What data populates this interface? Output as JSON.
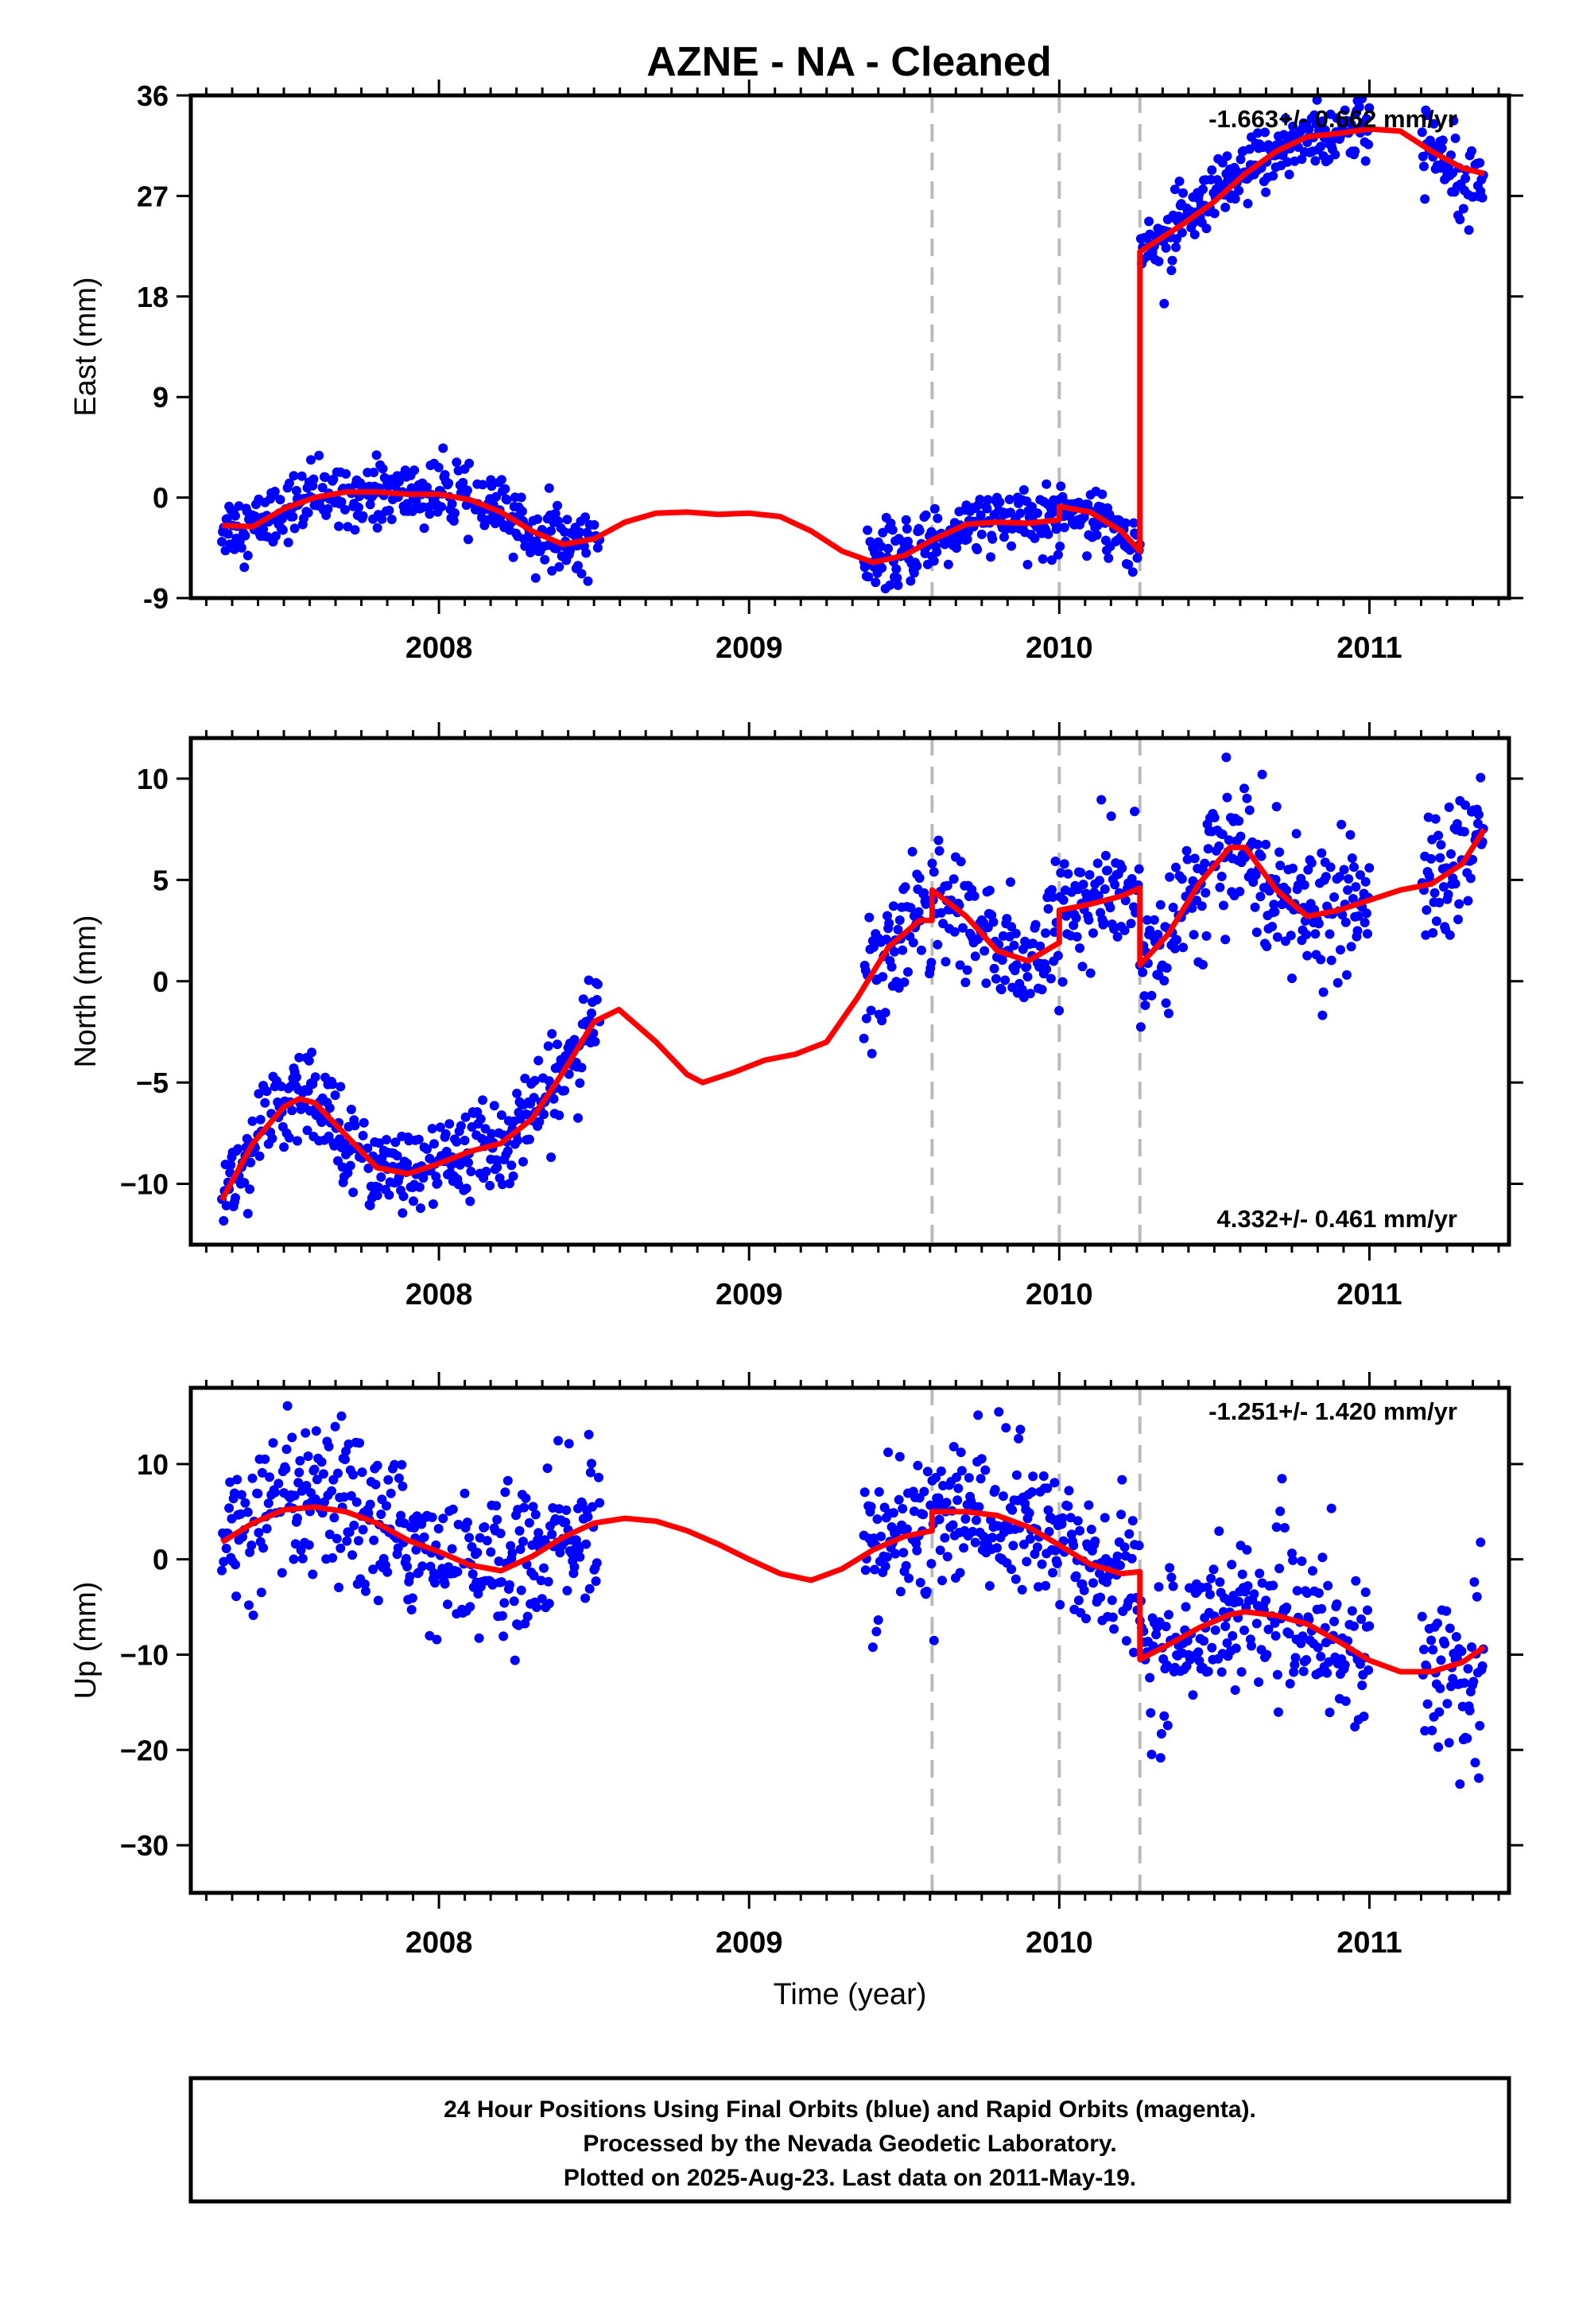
{
  "title": "AZNE  - NA - Cleaned",
  "colors": {
    "points": "#0000ff",
    "model": "#ff0000",
    "breaks": "#bbbbbb",
    "frame": "#000000"
  },
  "chart_data": [
    {
      "type": "scatter",
      "ylabel": "East (mm)",
      "xlabel": "",
      "xlim": [
        2007.2,
        2011.45
      ],
      "ylim": [
        -9,
        36
      ],
      "yticks": [
        -9,
        0,
        9,
        18,
        27,
        36
      ],
      "xticks": [
        2008,
        2009,
        2010,
        2011
      ],
      "xtick_labels": [
        "2008",
        "2009",
        "2010",
        "2011"
      ],
      "rate": "-1.663+/- 0.662 mm/yr",
      "rate_position": "top-right",
      "breaks": [
        2009.59,
        2010.0,
        2010.26
      ],
      "model": [
        [
          2007.3,
          -2.5
        ],
        [
          2007.4,
          -2.6
        ],
        [
          2007.5,
          -1.0
        ],
        [
          2007.6,
          0.0
        ],
        [
          2007.7,
          0.5
        ],
        [
          2007.8,
          0.5
        ],
        [
          2007.9,
          0.3
        ],
        [
          2008.0,
          0.3
        ],
        [
          2008.1,
          -0.2
        ],
        [
          2008.2,
          -1.3
        ],
        [
          2008.3,
          -3.0
        ],
        [
          2008.4,
          -4.2
        ],
        [
          2008.5,
          -3.7
        ],
        [
          2008.6,
          -2.2
        ],
        [
          2008.7,
          -1.4
        ],
        [
          2008.8,
          -1.3
        ],
        [
          2008.9,
          -1.5
        ],
        [
          2009.0,
          -1.4
        ],
        [
          2009.1,
          -1.7
        ],
        [
          2009.2,
          -3.0
        ],
        [
          2009.3,
          -4.8
        ],
        [
          2009.4,
          -5.8
        ],
        [
          2009.5,
          -5.2
        ],
        [
          2009.59,
          -3.8
        ],
        [
          2009.7,
          -2.4
        ],
        [
          2009.8,
          -2.2
        ],
        [
          2009.9,
          -2.3
        ],
        [
          2010.0,
          -2.0
        ],
        [
          2010.0,
          -0.8
        ],
        [
          2010.1,
          -1.3
        ],
        [
          2010.2,
          -3.0
        ],
        [
          2010.26,
          -4.8
        ],
        [
          2010.26,
          22.0
        ],
        [
          2010.4,
          24.5
        ],
        [
          2010.5,
          26.5
        ],
        [
          2010.6,
          29.0
        ],
        [
          2010.7,
          31.0
        ],
        [
          2010.8,
          32.3
        ],
        [
          2010.9,
          32.6
        ],
        [
          2011.0,
          33.0
        ],
        [
          2011.1,
          32.8
        ],
        [
          2011.2,
          31.0
        ],
        [
          2011.3,
          29.5
        ],
        [
          2011.37,
          29.0
        ]
      ],
      "segments": [
        {
          "start": 2007.3,
          "end": 2008.52,
          "sd": 1.4
        },
        {
          "start": 2009.37,
          "end": 2010.26,
          "sd": 1.4
        },
        {
          "start": 2010.26,
          "end": 2011.0,
          "sd": 1.5
        },
        {
          "start": 2011.17,
          "end": 2011.37,
          "sd": 1.6
        }
      ]
    },
    {
      "type": "scatter",
      "ylabel": "North (mm)",
      "xlabel": "",
      "xlim": [
        2007.2,
        2011.45
      ],
      "ylim": [
        -13,
        12
      ],
      "yticks": [
        -10,
        -5,
        0,
        5,
        10
      ],
      "ytick_labels": [
        "−10",
        "−5",
        "0",
        "5",
        "10"
      ],
      "xticks": [
        2008,
        2009,
        2010,
        2011
      ],
      "xtick_labels": [
        "2008",
        "2009",
        "2010",
        "2011"
      ],
      "rate": "4.332+/- 0.461 mm/yr",
      "rate_position": "bottom-right",
      "breaks": [
        2009.59,
        2010.0,
        2010.26
      ],
      "model": [
        [
          2007.3,
          -10.8
        ],
        [
          2007.4,
          -8.0
        ],
        [
          2007.5,
          -6.2
        ],
        [
          2007.55,
          -5.8
        ],
        [
          2007.6,
          -6.0
        ],
        [
          2007.7,
          -7.6
        ],
        [
          2007.8,
          -9.2
        ],
        [
          2007.9,
          -9.5
        ],
        [
          2008.0,
          -9.0
        ],
        [
          2008.1,
          -8.4
        ],
        [
          2008.2,
          -8.0
        ],
        [
          2008.3,
          -6.8
        ],
        [
          2008.4,
          -4.5
        ],
        [
          2008.5,
          -2.0
        ],
        [
          2008.58,
          -1.4
        ],
        [
          2008.7,
          -3.0
        ],
        [
          2008.8,
          -4.6
        ],
        [
          2008.85,
          -5.0
        ],
        [
          2008.95,
          -4.5
        ],
        [
          2009.05,
          -3.9
        ],
        [
          2009.15,
          -3.6
        ],
        [
          2009.25,
          -3.0
        ],
        [
          2009.35,
          -0.8
        ],
        [
          2009.45,
          1.7
        ],
        [
          2009.55,
          3.0
        ],
        [
          2009.59,
          3.0
        ],
        [
          2009.59,
          4.5
        ],
        [
          2009.7,
          3.2
        ],
        [
          2009.8,
          1.5
        ],
        [
          2009.9,
          1.0
        ],
        [
          2010.0,
          1.9
        ],
        [
          2010.0,
          3.5
        ],
        [
          2010.1,
          3.8
        ],
        [
          2010.2,
          4.2
        ],
        [
          2010.26,
          4.6
        ],
        [
          2010.26,
          0.8
        ],
        [
          2010.35,
          2.3
        ],
        [
          2010.45,
          4.8
        ],
        [
          2010.55,
          6.6
        ],
        [
          2010.6,
          6.6
        ],
        [
          2010.7,
          4.5
        ],
        [
          2010.8,
          3.2
        ],
        [
          2010.9,
          3.5
        ],
        [
          2011.0,
          4.0
        ],
        [
          2011.1,
          4.5
        ],
        [
          2011.2,
          4.8
        ],
        [
          2011.3,
          5.8
        ],
        [
          2011.37,
          7.5
        ]
      ],
      "segments": [
        {
          "start": 2007.3,
          "end": 2008.52,
          "sd": 1.1
        },
        {
          "start": 2009.37,
          "end": 2010.26,
          "sd": 1.5
        },
        {
          "start": 2010.26,
          "end": 2011.0,
          "sd": 1.6
        },
        {
          "start": 2011.17,
          "end": 2011.37,
          "sd": 1.7
        }
      ]
    },
    {
      "type": "scatter",
      "ylabel": "Up (mm)",
      "xlabel": "Time (year)",
      "xlim": [
        2007.2,
        2011.45
      ],
      "ylim": [
        -35,
        18
      ],
      "yticks": [
        -30,
        -20,
        -10,
        0,
        10
      ],
      "ytick_labels": [
        "−30",
        "−20",
        "−10",
        "0",
        "10"
      ],
      "xticks": [
        2008,
        2009,
        2010,
        2011
      ],
      "xtick_labels": [
        "2008",
        "2009",
        "2010",
        "2011"
      ],
      "rate": "-1.251+/- 1.420 mm/yr",
      "rate_position": "top-right",
      "breaks": [
        2009.59,
        2010.0,
        2010.26
      ],
      "model": [
        [
          2007.3,
          1.8
        ],
        [
          2007.4,
          3.8
        ],
        [
          2007.5,
          5.2
        ],
        [
          2007.6,
          5.5
        ],
        [
          2007.7,
          5.0
        ],
        [
          2007.8,
          3.8
        ],
        [
          2007.9,
          2.0
        ],
        [
          2008.0,
          0.8
        ],
        [
          2008.1,
          -0.6
        ],
        [
          2008.2,
          -1.2
        ],
        [
          2008.3,
          0.3
        ],
        [
          2008.4,
          2.3
        ],
        [
          2008.5,
          3.8
        ],
        [
          2008.6,
          4.3
        ],
        [
          2008.7,
          4.0
        ],
        [
          2008.8,
          3.0
        ],
        [
          2008.9,
          1.6
        ],
        [
          2009.0,
          0.0
        ],
        [
          2009.1,
          -1.5
        ],
        [
          2009.2,
          -2.2
        ],
        [
          2009.3,
          -1.0
        ],
        [
          2009.4,
          1.0
        ],
        [
          2009.5,
          2.4
        ],
        [
          2009.59,
          3.0
        ],
        [
          2009.59,
          5.0
        ],
        [
          2009.7,
          5.0
        ],
        [
          2009.8,
          4.6
        ],
        [
          2009.9,
          3.4
        ],
        [
          2010.0,
          1.5
        ],
        [
          2010.1,
          -0.5
        ],
        [
          2010.2,
          -1.5
        ],
        [
          2010.26,
          -1.3
        ],
        [
          2010.26,
          -10.5
        ],
        [
          2010.35,
          -9.0
        ],
        [
          2010.45,
          -7.2
        ],
        [
          2010.55,
          -5.8
        ],
        [
          2010.6,
          -5.5
        ],
        [
          2010.7,
          -5.9
        ],
        [
          2010.8,
          -6.8
        ],
        [
          2010.9,
          -8.6
        ],
        [
          2011.0,
          -10.6
        ],
        [
          2011.1,
          -11.8
        ],
        [
          2011.2,
          -11.8
        ],
        [
          2011.3,
          -10.8
        ],
        [
          2011.37,
          -9.2
        ]
      ],
      "segments": [
        {
          "start": 2007.3,
          "end": 2008.52,
          "sd": 3.8
        },
        {
          "start": 2009.37,
          "end": 2010.26,
          "sd": 4.0
        },
        {
          "start": 2010.26,
          "end": 2011.0,
          "sd": 3.8
        },
        {
          "start": 2011.17,
          "end": 2011.37,
          "sd": 4.5
        }
      ]
    }
  ],
  "footer": {
    "line1": "24 Hour Positions Using Final Orbits (blue) and Rapid Orbits (magenta).",
    "line2": "Processed by the Nevada Geodetic Laboratory.",
    "line3": "Plotted on 2025-Aug-23. Last data on 2011-May-19."
  }
}
